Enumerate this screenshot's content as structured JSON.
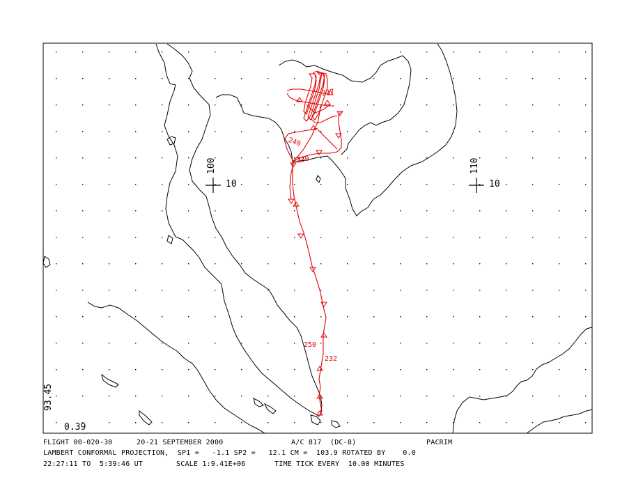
{
  "map": {
    "grid_markers": [
      {
        "lon_label": "100",
        "lat_label": "10"
      },
      {
        "lon_label": "110",
        "lat_label": "10"
      }
    ],
    "corner_labels": {
      "left_vertical": "93.45",
      "bottom_left": "0.39"
    },
    "track_annotations": [
      "237",
      "240",
      "250",
      "230",
      "232"
    ],
    "track_color": "#e00000",
    "coast_color": "#000000"
  },
  "footer": {
    "line1_flight": "FLIGHT 00-020-30",
    "line1_date": "20-21 SEPTEMBER 2000",
    "line1_aircraft": "A/C 817  (DC-8)",
    "line1_project": "PACRIM",
    "line2": "LAMBERT CONFORMAL PROJECTION,  SP1 =   -1.1 SP2 =   12.1 CM =  103.9 ROTATED BY    0.0",
    "line3_time": "22:27:11 TO  5:39:46 UT",
    "line3_scale": "SCALE 1:9.41E+06",
    "line3_tick": "TIME TICK EVERY  10.00 MINUTES"
  }
}
